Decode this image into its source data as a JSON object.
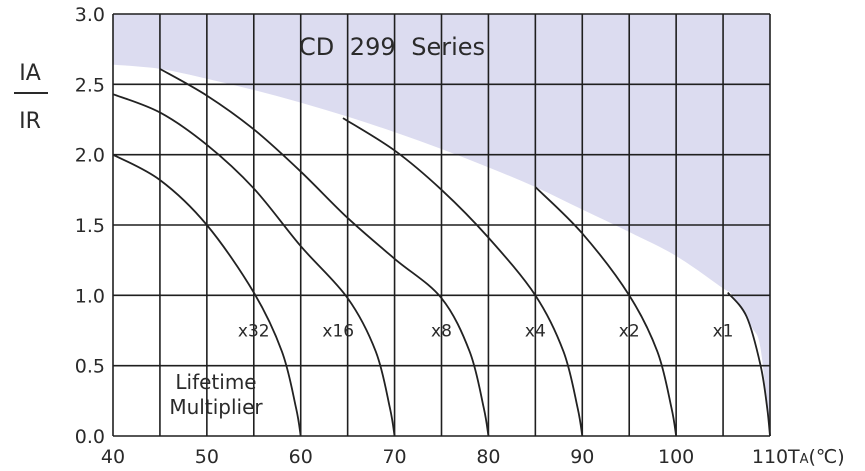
{
  "chart_data": {
    "type": "line",
    "title": "CD  299  Series",
    "ylabel_top": "IA",
    "ylabel_bottom": "IR",
    "xlabel_main": "T",
    "xlabel_sub": "A",
    "xlabel_unit": "(℃)",
    "xlim": [
      40,
      110
    ],
    "ylim": [
      0.0,
      3.0
    ],
    "xticks": [
      "40",
      "50",
      "60",
      "70",
      "80",
      "90",
      "100",
      "110"
    ],
    "yticks": [
      "0.0",
      "0.5",
      "1.0",
      "1.5",
      "2.0",
      "2.5",
      "3.0"
    ],
    "grid": true,
    "shaded_region_boundary": [
      {
        "x": 40,
        "y": 2.64
      },
      {
        "x": 45,
        "y": 2.61
      },
      {
        "x": 50,
        "y": 2.54
      },
      {
        "x": 55,
        "y": 2.46
      },
      {
        "x": 60,
        "y": 2.37
      },
      {
        "x": 65,
        "y": 2.27
      },
      {
        "x": 70,
        "y": 2.16
      },
      {
        "x": 75,
        "y": 2.04
      },
      {
        "x": 80,
        "y": 1.91
      },
      {
        "x": 85,
        "y": 1.77
      },
      {
        "x": 90,
        "y": 1.61
      },
      {
        "x": 95,
        "y": 1.45
      },
      {
        "x": 100,
        "y": 1.28
      },
      {
        "x": 105,
        "y": 1.05
      },
      {
        "x": 106,
        "y": 1.0
      },
      {
        "x": 108,
        "y": 0.78
      },
      {
        "x": 109,
        "y": 0.62
      },
      {
        "x": 110,
        "y": 0.0
      }
    ],
    "series": [
      {
        "label": "x32",
        "label_at": [
          55,
          0.75
        ],
        "points": [
          {
            "x": 40,
            "y": 2.0
          },
          {
            "x": 45,
            "y": 1.82
          },
          {
            "x": 50,
            "y": 1.5
          },
          {
            "x": 55,
            "y": 1.02
          },
          {
            "x": 58,
            "y": 0.6
          },
          {
            "x": 59.5,
            "y": 0.2
          },
          {
            "x": 60,
            "y": 0.0
          }
        ]
      },
      {
        "label": "x16",
        "label_at": [
          64,
          0.75
        ],
        "points": [
          {
            "x": 40,
            "y": 2.43
          },
          {
            "x": 45,
            "y": 2.3
          },
          {
            "x": 50,
            "y": 2.07
          },
          {
            "x": 55,
            "y": 1.76
          },
          {
            "x": 60,
            "y": 1.35
          },
          {
            "x": 65,
            "y": 0.98
          },
          {
            "x": 68,
            "y": 0.6
          },
          {
            "x": 69.5,
            "y": 0.2
          },
          {
            "x": 70,
            "y": 0.0
          }
        ]
      },
      {
        "label": "x8",
        "label_at": [
          75,
          0.75
        ],
        "points": [
          {
            "x": 45,
            "y": 2.61
          },
          {
            "x": 50,
            "y": 2.42
          },
          {
            "x": 55,
            "y": 2.18
          },
          {
            "x": 60,
            "y": 1.88
          },
          {
            "x": 65,
            "y": 1.55
          },
          {
            "x": 70,
            "y": 1.26
          },
          {
            "x": 75,
            "y": 0.98
          },
          {
            "x": 78,
            "y": 0.6
          },
          {
            "x": 79.5,
            "y": 0.2
          },
          {
            "x": 80,
            "y": 0.0
          }
        ]
      },
      {
        "label": "x4",
        "label_at": [
          85,
          0.75
        ],
        "points": [
          {
            "x": 64.5,
            "y": 2.26
          },
          {
            "x": 70,
            "y": 2.03
          },
          {
            "x": 75,
            "y": 1.75
          },
          {
            "x": 80,
            "y": 1.41
          },
          {
            "x": 85,
            "y": 1.0
          },
          {
            "x": 88,
            "y": 0.6
          },
          {
            "x": 89.5,
            "y": 0.2
          },
          {
            "x": 90,
            "y": 0.0
          }
        ]
      },
      {
        "label": "x2",
        "label_at": [
          95,
          0.75
        ],
        "points": [
          {
            "x": 85,
            "y": 1.77
          },
          {
            "x": 90,
            "y": 1.44
          },
          {
            "x": 95,
            "y": 1.0
          },
          {
            "x": 98,
            "y": 0.6
          },
          {
            "x": 99.5,
            "y": 0.2
          },
          {
            "x": 100,
            "y": 0.0
          }
        ]
      },
      {
        "label": "x1",
        "label_at": [
          105,
          0.75
        ],
        "points": [
          {
            "x": 105.5,
            "y": 1.02
          },
          {
            "x": 107.5,
            "y": 0.85
          },
          {
            "x": 109,
            "y": 0.5
          },
          {
            "x": 109.7,
            "y": 0.2
          },
          {
            "x": 110,
            "y": 0.0
          }
        ]
      }
    ],
    "annotation_line1": "Lifetime",
    "annotation_line2": "Multiplier"
  },
  "colors": {
    "shade": "#dcdcf0",
    "grid": "#1f1f1f",
    "curve": "#222222",
    "text": "#2a2a2a"
  }
}
